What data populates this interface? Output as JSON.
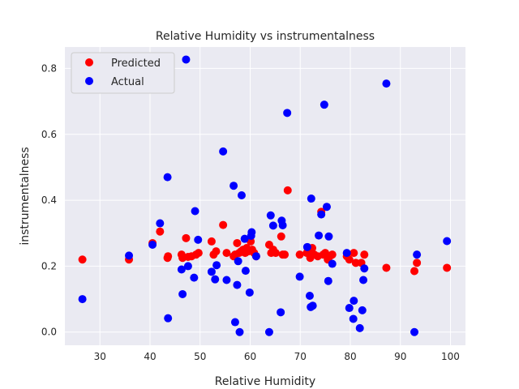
{
  "chart_data": {
    "type": "scatter",
    "title": "Relative Humidity vs instrumentalness",
    "xlabel": "Relative Humidity",
    "ylabel": "instrumentalness",
    "xlim": [
      23,
      103
    ],
    "ylim": [
      -0.04,
      0.865
    ],
    "xticks": [
      30,
      40,
      50,
      60,
      70,
      80,
      90,
      100
    ],
    "yticks": [
      0.0,
      0.2,
      0.4,
      0.6,
      0.8
    ],
    "grid": true,
    "legend_position": "top-left",
    "series": [
      {
        "name": "Predicted",
        "color": "#ff0000",
        "points": [
          [
            26.5,
            0.22
          ],
          [
            35.8,
            0.22
          ],
          [
            40.5,
            0.27
          ],
          [
            42.0,
            0.305
          ],
          [
            43.5,
            0.225
          ],
          [
            43.6,
            0.23
          ],
          [
            46.3,
            0.235
          ],
          [
            46.5,
            0.225
          ],
          [
            47.2,
            0.285
          ],
          [
            47.6,
            0.228
          ],
          [
            48.3,
            0.23
          ],
          [
            49.2,
            0.235
          ],
          [
            49.7,
            0.24
          ],
          [
            52.3,
            0.275
          ],
          [
            52.7,
            0.235
          ],
          [
            53.2,
            0.245
          ],
          [
            54.6,
            0.325
          ],
          [
            55.3,
            0.24
          ],
          [
            56.7,
            0.23
          ],
          [
            57.0,
            0.235
          ],
          [
            57.4,
            0.27
          ],
          [
            57.8,
            0.24
          ],
          [
            58.2,
            0.245
          ],
          [
            58.6,
            0.25
          ],
          [
            59.0,
            0.24
          ],
          [
            59.3,
            0.255
          ],
          [
            59.7,
            0.245
          ],
          [
            60.1,
            0.275
          ],
          [
            60.4,
            0.25
          ],
          [
            60.8,
            0.24
          ],
          [
            61.2,
            0.23
          ],
          [
            63.8,
            0.265
          ],
          [
            64.2,
            0.24
          ],
          [
            64.6,
            0.25
          ],
          [
            65.1,
            0.24
          ],
          [
            66.2,
            0.29
          ],
          [
            66.5,
            0.235
          ],
          [
            66.9,
            0.235
          ],
          [
            67.5,
            0.43
          ],
          [
            69.9,
            0.235
          ],
          [
            71.3,
            0.24
          ],
          [
            71.6,
            0.25
          ],
          [
            72.0,
            0.225
          ],
          [
            72.4,
            0.255
          ],
          [
            72.8,
            0.235
          ],
          [
            73.5,
            0.23
          ],
          [
            74.2,
            0.365
          ],
          [
            74.6,
            0.235
          ],
          [
            75.0,
            0.24
          ],
          [
            75.5,
            0.22
          ],
          [
            75.9,
            0.23
          ],
          [
            76.4,
            0.235
          ],
          [
            79.3,
            0.23
          ],
          [
            79.8,
            0.22
          ],
          [
            80.7,
            0.24
          ],
          [
            81.1,
            0.21
          ],
          [
            82.2,
            0.21
          ],
          [
            82.8,
            0.235
          ],
          [
            87.2,
            0.195
          ],
          [
            92.8,
            0.185
          ],
          [
            93.3,
            0.21
          ],
          [
            99.3,
            0.195
          ]
        ]
      },
      {
        "name": "Actual",
        "color": "#0000ff",
        "points": [
          [
            26.5,
            0.1
          ],
          [
            35.8,
            0.232
          ],
          [
            40.5,
            0.265
          ],
          [
            42.0,
            0.33
          ],
          [
            43.5,
            0.47
          ],
          [
            43.6,
            0.042
          ],
          [
            46.3,
            0.19
          ],
          [
            46.5,
            0.115
          ],
          [
            47.2,
            0.827
          ],
          [
            47.6,
            0.2
          ],
          [
            48.8,
            0.165
          ],
          [
            49.0,
            0.367
          ],
          [
            49.6,
            0.28
          ],
          [
            52.3,
            0.183
          ],
          [
            53.0,
            0.16
          ],
          [
            53.3,
            0.203
          ],
          [
            54.6,
            0.548
          ],
          [
            55.3,
            0.158
          ],
          [
            56.7,
            0.444
          ],
          [
            57.0,
            0.03
          ],
          [
            57.4,
            0.143
          ],
          [
            57.6,
            0.215
          ],
          [
            57.9,
            0.0
          ],
          [
            58.3,
            0.415
          ],
          [
            58.9,
            0.283
          ],
          [
            59.1,
            0.186
          ],
          [
            59.9,
            0.12
          ],
          [
            60.2,
            0.292
          ],
          [
            60.3,
            0.303
          ],
          [
            61.2,
            0.23
          ],
          [
            63.8,
            0.0
          ],
          [
            64.1,
            0.354
          ],
          [
            64.6,
            0.323
          ],
          [
            66.1,
            0.06
          ],
          [
            66.3,
            0.338
          ],
          [
            66.5,
            0.324
          ],
          [
            67.4,
            0.665
          ],
          [
            69.9,
            0.168
          ],
          [
            71.4,
            0.258
          ],
          [
            71.9,
            0.11
          ],
          [
            72.1,
            0.076
          ],
          [
            72.2,
            0.405
          ],
          [
            72.5,
            0.08
          ],
          [
            73.7,
            0.293
          ],
          [
            74.2,
            0.357
          ],
          [
            74.8,
            0.69
          ],
          [
            75.3,
            0.38
          ],
          [
            75.6,
            0.155
          ],
          [
            75.7,
            0.29
          ],
          [
            76.4,
            0.207
          ],
          [
            79.3,
            0.24
          ],
          [
            79.8,
            0.073
          ],
          [
            80.6,
            0.04
          ],
          [
            80.7,
            0.095
          ],
          [
            81.9,
            0.012
          ],
          [
            82.4,
            0.066
          ],
          [
            82.6,
            0.158
          ],
          [
            82.8,
            0.193
          ],
          [
            87.2,
            0.754
          ],
          [
            92.8,
            0.0
          ],
          [
            93.3,
            0.235
          ],
          [
            99.3,
            0.276
          ]
        ]
      }
    ]
  }
}
